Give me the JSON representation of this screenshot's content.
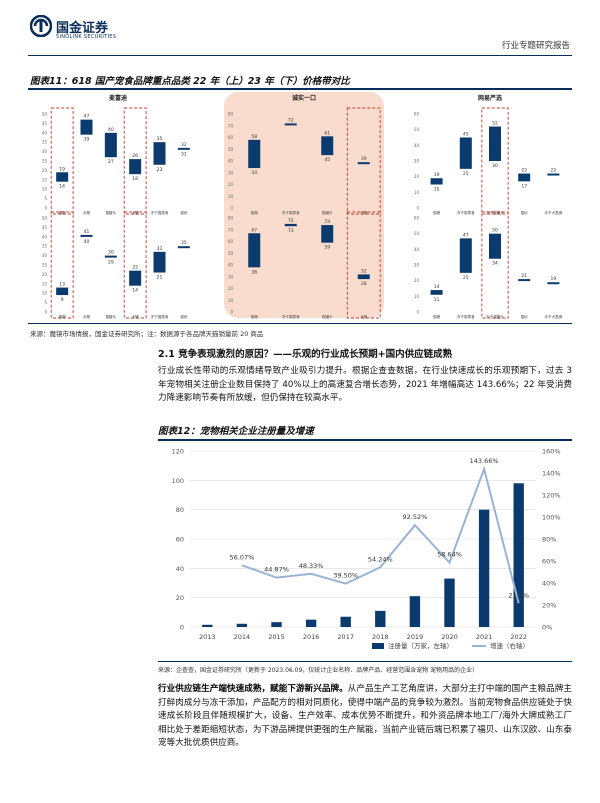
{
  "header": {
    "company_cn": "国金证券",
    "company_en": "SINOLINK SECURITIES",
    "report_type": "行业专题研究报告"
  },
  "figure11": {
    "title": "图表11：618 国产宠食品牌重点品类 22 年（上）23 年（下）价格带对比",
    "source": "来源：魔镜市场情报，国金证券研究所；注：数据源于各品牌天猫销量前 20 商品",
    "panels": [
      {
        "name": "麦富迪",
        "top": {
          "yticks": [
            0,
            5,
            10,
            15,
            20,
            25,
            30,
            35,
            40,
            45,
            50
          ],
          "ymax": 50,
          "items": [
            {
              "cat": "猫粮",
              "low": 14,
              "high": 19,
              "boxed": true
            },
            {
              "cat": "犬粮",
              "low": 39,
              "high": 47
            },
            {
              "cat": "猫罐头",
              "low": 27,
              "high": 40
            },
            {
              "cat": "犬罐",
              "low": 18,
              "high": 26,
              "boxed": true
            },
            {
              "cat": "冻干猫零食",
              "low": 23,
              "high": 35
            },
            {
              "cat": "猫砂",
              "low": 31,
              "high": 32
            }
          ]
        },
        "bottom": {
          "yticks": [
            0,
            5,
            10,
            15,
            20,
            25,
            30,
            35,
            40,
            45,
            50
          ],
          "ymax": 50,
          "items": [
            {
              "cat": "猫粮",
              "low": 9,
              "high": 13,
              "boxed": true
            },
            {
              "cat": "犬粮",
              "low": 40,
              "high": 41
            },
            {
              "cat": "猫罐头",
              "low": 29,
              "high": 30
            },
            {
              "cat": "犬罐",
              "low": 14,
              "high": 22,
              "boxed": true
            },
            {
              "cat": "冻干猫零食",
              "low": 21,
              "high": 32
            },
            {
              "cat": "猫砂",
              "low": 35,
              "high": 35
            }
          ]
        }
      },
      {
        "name": "诚实一口",
        "top": {
          "yticks": [
            0,
            10,
            20,
            30,
            40,
            50,
            60,
            70,
            80
          ],
          "ymax": 80,
          "items": [
            {
              "cat": "猫粮",
              "low": 34,
              "high": 58
            },
            {
              "cat": "冻干猫零食",
              "low": 72,
              "high": 72
            },
            {
              "cat": "猫罐头",
              "low": 45,
              "high": 61
            },
            {
              "cat": "犬粮",
              "low": 39,
              "high": 39,
              "boxed": true
            }
          ]
        },
        "bottom": {
          "yticks": [
            0,
            10,
            20,
            30,
            40,
            50,
            60,
            70,
            80
          ],
          "ymax": 80,
          "items": [
            {
              "cat": "猫粮",
              "low": 38,
              "high": 67
            },
            {
              "cat": "冻干猫零食",
              "low": 73,
              "high": 75
            },
            {
              "cat": "猫罐头",
              "low": 59,
              "high": 74
            },
            {
              "cat": "犬粮",
              "low": 28,
              "high": 32,
              "boxed": true
            }
          ]
        }
      },
      {
        "name": "网易严选",
        "top": {
          "yticks": [
            0,
            10,
            20,
            30,
            40,
            50,
            60
          ],
          "ymax": 60,
          "items": [
            {
              "cat": "猫粮",
              "low": 15,
              "high": 19
            },
            {
              "cat": "冻干猫零食",
              "low": 25,
              "high": 45
            },
            {
              "cat": "冻干猫罐头",
              "low": 30,
              "high": 52,
              "boxed": true
            },
            {
              "cat": "猫砂",
              "low": 17,
              "high": 22
            },
            {
              "cat": "冻干犬零食",
              "low": 22,
              "high": 22
            }
          ]
        },
        "bottom": {
          "yticks": [
            0,
            10,
            20,
            30,
            40,
            50,
            60
          ],
          "ymax": 60,
          "items": [
            {
              "cat": "猫粮",
              "low": 11,
              "high": 14
            },
            {
              "cat": "冻干猫零食",
              "low": 25,
              "high": 47
            },
            {
              "cat": "冻干猫罐头",
              "low": 34,
              "high": 50,
              "boxed": true
            },
            {
              "cat": "猫砂",
              "low": 21,
              "high": 21
            },
            {
              "cat": "冻干犬零食",
              "low": 19,
              "high": 19
            }
          ]
        }
      }
    ]
  },
  "section": {
    "heading": "2.1 竞争表现激烈的原因？——乐观的行业成长预期+国内供应链成熟",
    "para1": "行业成长性带动的乐观情绪导致产业吸引力提升。根据企查查数据，在行业快速成长的乐观预期下，过去 3 年宠物相关注册企业数目保持了 40%以上的高速复合增长态势，2021 年增幅高达 143.66%；22 年受消费力降速影响节奏有所放缓，但仍保持在较高水平。"
  },
  "chart_data": {
    "type": "bar",
    "title": "图表12：宠物相关企业注册量及增速",
    "categories": [
      "2013",
      "2014",
      "2015",
      "2016",
      "2017",
      "2018",
      "2019",
      "2020",
      "2021",
      "2022"
    ],
    "series": [
      {
        "name": "注册量（万家，左轴）",
        "type": "bar",
        "values": [
          1.5,
          2.2,
          3.3,
          5,
          7,
          11,
          21,
          33,
          80,
          98
        ]
      },
      {
        "name": "增速（右轴）",
        "type": "line",
        "values": [
          null,
          56.07,
          44.87,
          48.33,
          39.5,
          54.24,
          92.52,
          58.64,
          143.66,
          21.5
        ],
        "labels": [
          "",
          "56.07%",
          "44.87%",
          "48.33%",
          "39.50%",
          "54.24%",
          "92.52%",
          "58.64%",
          "143.66%",
          "21.5%"
        ]
      }
    ],
    "yleft": {
      "min": 0,
      "max": 120,
      "ticks": [
        "0",
        "20",
        "40",
        "60",
        "80",
        "100",
        "120"
      ]
    },
    "yright": {
      "min": 0,
      "max": 160,
      "ticks": [
        "0%",
        "20%",
        "40%",
        "60%",
        "80%",
        "100%",
        "120%",
        "140%",
        "160%"
      ]
    },
    "legend": "bottom-right",
    "bar_color": "#0b3a6e",
    "line_color": "#9bb3d4",
    "source": "来源：企查查，国金证券研究所（更新于 2023.06.09，仅统计企业名称、品牌产品、经营范围含宠物 宠物用品的企业）"
  },
  "section2": {
    "lead": "行业供应链生产端快速成熟，赋能下游新兴品牌。",
    "body": "从产品生产工艺角度讲，大部分主打中端的国产主粮品牌主打鲜肉成分与冻干添加，产品配方的相对同质化，使得中端产品的竞争较为激烈。当前宠物食品供应链处于快速成长阶段且伴随规模扩大，设备、生产效率、成本优势不断提升，和外资品牌本地工厂/海外大牌成熟工厂相比处于差距缩短状态，为下游品牌提供更强的生产赋能，当前产业链后端已积累了福贝、山东汉欧、山东泰宠等大批优质供应商。"
  },
  "colors": {
    "navy": "#0a2c5a",
    "bar": "#0b3a6e",
    "peach": "#f9dccd",
    "dash": "#c0392b"
  }
}
